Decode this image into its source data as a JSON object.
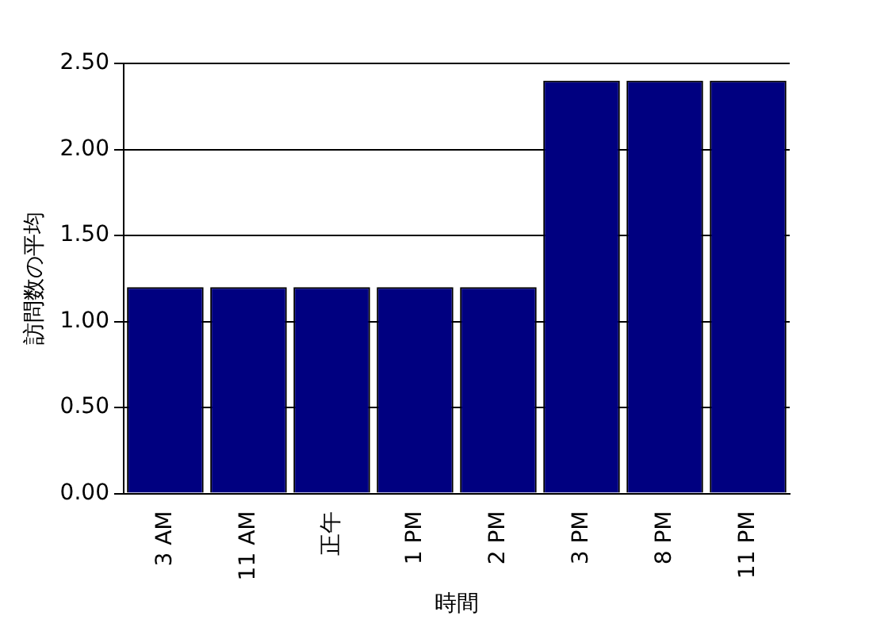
{
  "chart_data": {
    "type": "bar",
    "xlabel": "時間",
    "ylabel": "訪問数の平均",
    "categories": [
      "3 AM",
      "11 AM",
      "正午",
      "1 PM",
      "2 PM",
      "3 PM",
      "8 PM",
      "11 PM"
    ],
    "values": [
      1.2,
      1.2,
      1.2,
      1.2,
      1.2,
      2.4,
      2.4,
      2.4
    ],
    "color": "#000080",
    "ylim": [
      0,
      2.5
    ],
    "yticks": [
      {
        "value": 0,
        "label": "0.00"
      },
      {
        "value": 0.5,
        "label": "0.50"
      },
      {
        "value": 1,
        "label": "1.00"
      },
      {
        "value": 1.5,
        "label": "1.50"
      },
      {
        "value": 2,
        "label": "2.00"
      },
      {
        "value": 2.5,
        "label": "2.50"
      }
    ],
    "grid": "y"
  }
}
